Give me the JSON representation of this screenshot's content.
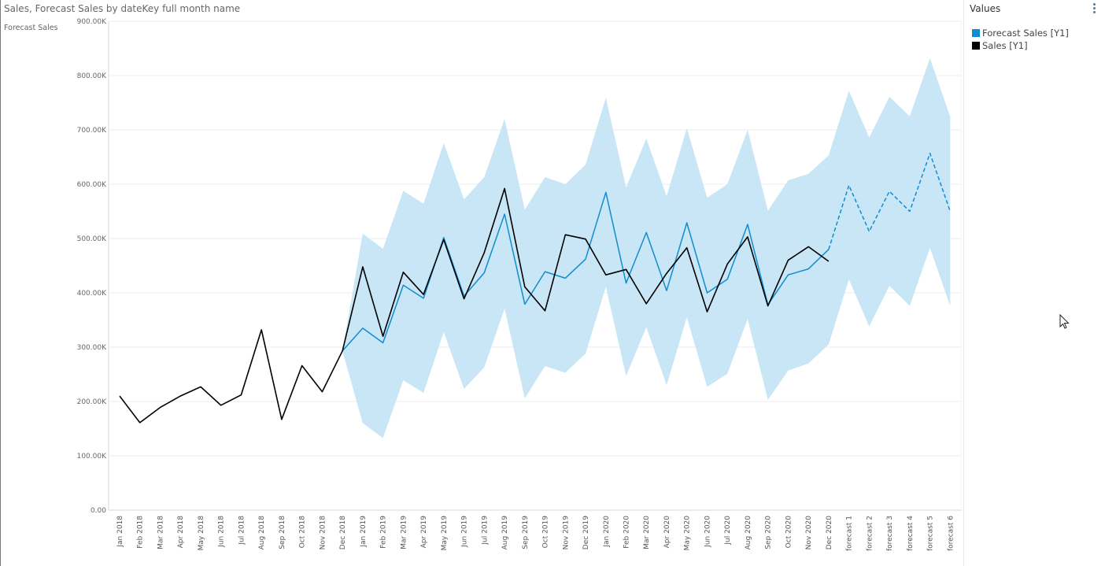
{
  "title": "Sales, Forecast Sales by dateKey full month name",
  "legend": {
    "title": "Values",
    "items": [
      {
        "label": "Forecast Sales [Y1]",
        "color": "#118dce"
      },
      {
        "label": "Sales [Y1]",
        "color": "#000000"
      }
    ]
  },
  "icons": {
    "more": "more-options-icon",
    "cursor": "mouse-pointer-icon"
  },
  "chart_data": {
    "type": "line",
    "ylabel": "Forecast Sales",
    "ylim": [
      0,
      900000
    ],
    "yticks": [
      0,
      100000,
      200000,
      300000,
      400000,
      500000,
      600000,
      700000,
      800000,
      900000
    ],
    "ytick_labels": [
      "0.00",
      "100.00K",
      "200.00K",
      "300.00K",
      "400.00K",
      "500.00K",
      "600.00K",
      "700.00K",
      "800.00K",
      "900.00K"
    ],
    "grid": true,
    "legend_position": "right",
    "categories": [
      "Jan 2018",
      "Feb 2018",
      "Mar 2018",
      "Apr 2018",
      "May 2018",
      "Jun 2018",
      "Jul 2018",
      "Aug 2018",
      "Sep 2018",
      "Oct 2018",
      "Nov 2018",
      "Dec 2018",
      "Jan 2019",
      "Feb 2019",
      "Mar 2019",
      "Apr 2019",
      "May 2019",
      "Jun 2019",
      "Jul 2019",
      "Aug 2019",
      "Sep 2019",
      "Oct 2019",
      "Nov 2019",
      "Dec 2019",
      "Jan 2020",
      "Feb 2020",
      "Mar 2020",
      "Apr 2020",
      "May 2020",
      "Jun 2020",
      "Jul 2020",
      "Aug 2020",
      "Sep 2020",
      "Oct 2020",
      "Nov 2020",
      "Dec 2020",
      "forecast 1",
      "forecast 2",
      "forecast 3",
      "forecast 4",
      "forecast 5",
      "forecast 6"
    ],
    "series": [
      {
        "name": "Sales [Y1]",
        "color": "#000000",
        "values": [
          210000,
          161000,
          189000,
          210000,
          227000,
          193000,
          212000,
          332000,
          167000,
          266000,
          218000,
          293000,
          448000,
          320000,
          438000,
          397000,
          498000,
          389000,
          474000,
          592000,
          411000,
          367000,
          507000,
          499000,
          433000,
          443000,
          380000,
          436000,
          483000,
          365000,
          453000,
          503000,
          376000,
          460000,
          485000,
          458000,
          null,
          null,
          null,
          null,
          null,
          null
        ]
      },
      {
        "name": "Forecast Sales [Y1]",
        "color": "#118dce",
        "values": [
          null,
          null,
          null,
          null,
          null,
          null,
          null,
          null,
          null,
          null,
          null,
          293000,
          335000,
          308000,
          414000,
          390000,
          502000,
          394000,
          437000,
          545000,
          379000,
          439000,
          427000,
          462000,
          585000,
          418000,
          511000,
          404000,
          529000,
          400000,
          425000,
          526000,
          378000,
          433000,
          444000,
          480000,
          598000,
          513000,
          587000,
          550000,
          657000,
          550000
        ],
        "dashed_from": "Dec 2020"
      }
    ],
    "band": {
      "color": "#c8e6f5",
      "upper": [
        null,
        null,
        null,
        null,
        null,
        null,
        null,
        null,
        null,
        null,
        null,
        293000,
        509000,
        481000,
        588000,
        564000,
        676000,
        572000,
        613000,
        720000,
        553000,
        613000,
        600000,
        636000,
        759000,
        594000,
        684000,
        578000,
        703000,
        575000,
        600000,
        700000,
        551000,
        607000,
        619000,
        653000,
        772000,
        686000,
        761000,
        725000,
        832000,
        724000
      ],
      "lower": [
        null,
        null,
        null,
        null,
        null,
        null,
        null,
        null,
        null,
        null,
        null,
        293000,
        160000,
        133000,
        239000,
        216000,
        328000,
        223000,
        263000,
        371000,
        206000,
        265000,
        253000,
        288000,
        411000,
        247000,
        337000,
        230000,
        355000,
        227000,
        251000,
        352000,
        203000,
        257000,
        270000,
        305000,
        425000,
        338000,
        413000,
        376000,
        483000,
        376000
      ]
    }
  }
}
